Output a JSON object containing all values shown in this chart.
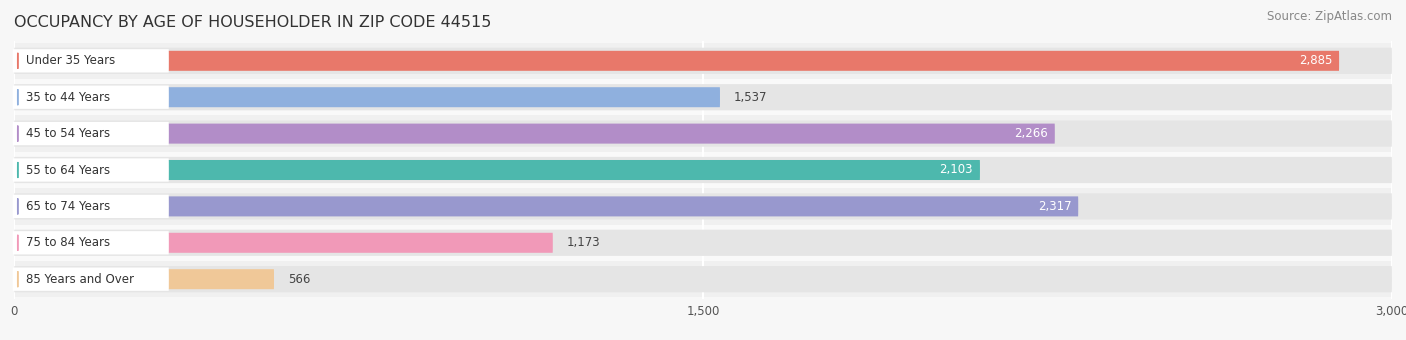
{
  "title": "OCCUPANCY BY AGE OF HOUSEHOLDER IN ZIP CODE 44515",
  "source": "Source: ZipAtlas.com",
  "categories": [
    "Under 35 Years",
    "35 to 44 Years",
    "45 to 54 Years",
    "55 to 64 Years",
    "65 to 74 Years",
    "75 to 84 Years",
    "85 Years and Over"
  ],
  "values": [
    2885,
    1537,
    2266,
    2103,
    2317,
    1173,
    566
  ],
  "bar_colors": [
    "#e8786a",
    "#8fb0de",
    "#b28dc8",
    "#4db8ad",
    "#9898ce",
    "#f199b8",
    "#f0c898"
  ],
  "xlim": [
    0,
    3000
  ],
  "xticks": [
    0,
    1500,
    3000
  ],
  "background_color": "#f7f7f7",
  "bar_bg_color": "#e5e5e5",
  "row_bg_even": "#f0f0f0",
  "row_bg_odd": "#f9f9f9",
  "title_fontsize": 11.5,
  "source_fontsize": 8.5,
  "label_fontsize": 8.5,
  "value_fontsize": 8.5
}
